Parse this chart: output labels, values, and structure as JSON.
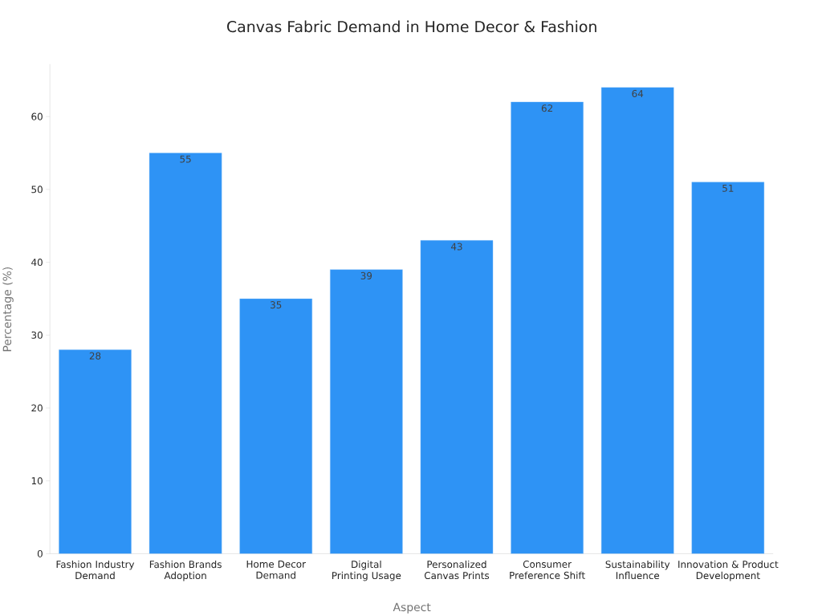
{
  "chart_data": {
    "type": "bar",
    "title": "Canvas Fabric Demand in Home Decor & Fashion",
    "xlabel": "Aspect",
    "ylabel": "Percentage (%)",
    "categories": [
      "Fashion Industry Demand",
      "Fashion Brands Adoption",
      "Home Decor Demand",
      "Digital Printing Usage",
      "Personalized Canvas Prints",
      "Consumer Preference Shift",
      "Sustainability Influence",
      "Innovation & Product Development"
    ],
    "values": [
      28,
      55,
      35,
      39,
      43,
      62,
      64,
      51
    ],
    "color": "#2e93f5",
    "ylim": [
      0,
      67.2
    ],
    "yticks": [
      0,
      10,
      20,
      30,
      40,
      50,
      60
    ],
    "data_labels": true
  }
}
